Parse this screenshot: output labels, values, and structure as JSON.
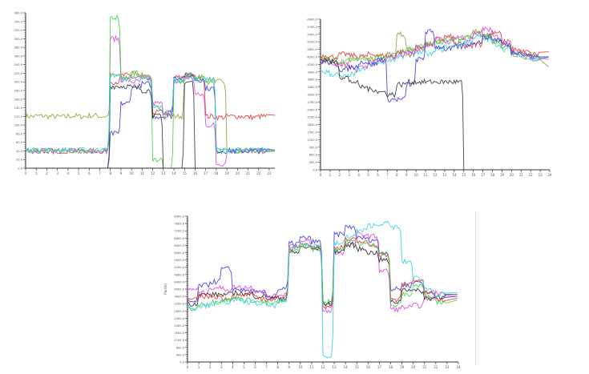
{
  "chart_data": [
    {
      "type": "line",
      "title": "",
      "xlabel": "",
      "ylabel": "",
      "xlim": [
        0,
        23
      ],
      "ylim": [
        0,
        360
      ],
      "ytick_step": 20,
      "grid": false,
      "x": [
        0,
        1,
        2,
        3,
        4,
        5,
        6,
        7,
        8,
        9,
        10,
        11,
        12,
        13,
        14,
        15,
        16,
        17,
        18,
        19,
        20,
        21,
        22,
        23
      ],
      "series": [
        {
          "name": "olive",
          "color": "#9a9a3a",
          "values": [
            120,
            121,
            120,
            119,
            121,
            120,
            122,
            120,
            215,
            210,
            220,
            215,
            140,
            125,
            120,
            215,
            210,
            205,
            200,
            40,
            40,
            40,
            40,
            40
          ]
        },
        {
          "name": "red",
          "color": "#e83030",
          "values": [
            40,
            40,
            40,
            40,
            40,
            40,
            40,
            40,
            200,
            215,
            210,
            205,
            130,
            128,
            210,
            215,
            210,
            120,
            118,
            120,
            120,
            118,
            120,
            122
          ]
        },
        {
          "name": "magenta",
          "color": "#e040e0",
          "values": [
            40,
            40,
            40,
            40,
            40,
            40,
            40,
            40,
            300,
            205,
            200,
            210,
            150,
            130,
            200,
            210,
            170,
            100,
            10,
            40,
            40,
            40,
            40,
            40
          ]
        },
        {
          "name": "green",
          "color": "#40d040",
          "values": [
            40,
            40,
            40,
            40,
            40,
            40,
            40,
            40,
            350,
            210,
            220,
            210,
            20,
            0,
            200,
            215,
            210,
            200,
            40,
            40,
            40,
            40,
            40,
            40
          ]
        },
        {
          "name": "blue",
          "color": "#3838e0",
          "values": [
            0,
            0,
            0,
            0,
            0,
            0,
            0,
            0,
            80,
            150,
            190,
            195,
            120,
            120,
            210,
            215,
            205,
            185,
            40,
            40,
            40,
            40,
            40,
            40
          ]
        },
        {
          "name": "black",
          "color": "#333333",
          "values": [
            0,
            0,
            0,
            0,
            0,
            0,
            0,
            0,
            190,
            190,
            185,
            180,
            120,
            0,
            0,
            200,
            0,
            0,
            0,
            0,
            0,
            0,
            0,
            0
          ]
        },
        {
          "name": "cyan",
          "color": "#30d0e0",
          "values": [
            42,
            42,
            42,
            42,
            42,
            42,
            42,
            42,
            215,
            205,
            210,
            205,
            140,
            130,
            205,
            210,
            205,
            205,
            42,
            42,
            42,
            42,
            42,
            42
          ]
        }
      ]
    },
    {
      "type": "line",
      "title": "",
      "xlabel": "",
      "ylabel": "",
      "xlim": [
        0,
        24
      ],
      "ylim": [
        0,
        6000
      ],
      "ytick_step": 300,
      "grid": false,
      "x": [
        0,
        1,
        2,
        3,
        4,
        5,
        6,
        7,
        8,
        9,
        10,
        11,
        12,
        13,
        14,
        15,
        16,
        17,
        18,
        19,
        20,
        21,
        22,
        23
      ],
      "series": [
        {
          "name": "red",
          "color": "#e83030",
          "values": [
            4550,
            4500,
            4600,
            4550,
            4500,
            4600,
            4550,
            4500,
            4700,
            4600,
            4800,
            5000,
            5200,
            5300,
            5000,
            4900,
            5000,
            5300,
            5500,
            5100,
            4800,
            4700,
            4600,
            4700
          ]
        },
        {
          "name": "olive",
          "color": "#9a9a3a",
          "values": [
            4400,
            4300,
            4200,
            4400,
            4500,
            4400,
            4500,
            4600,
            5400,
            4800,
            4900,
            5000,
            5100,
            5200,
            5100,
            5300,
            5500,
            5400,
            5100,
            4900,
            4600,
            4500,
            4400,
            4100
          ]
        },
        {
          "name": "green",
          "color": "#40d040",
          "values": [
            4400,
            4350,
            4300,
            4400,
            4450,
            4400,
            4500,
            4550,
            4700,
            4800,
            4900,
            5000,
            5100,
            5200,
            5200,
            5300,
            5400,
            5300,
            5100,
            4900,
            4700,
            4600,
            4500,
            4500
          ]
        },
        {
          "name": "cyan",
          "color": "#30d0e0",
          "values": [
            3900,
            3800,
            3700,
            3800,
            4000,
            4200,
            4300,
            4400,
            4500,
            4600,
            4700,
            4600,
            4800,
            4900,
            5000,
            5100,
            5300,
            5200,
            5000,
            4800,
            4600,
            4500,
            4400,
            4500
          ]
        },
        {
          "name": "magenta",
          "color": "#e040e0",
          "values": [
            4300,
            4200,
            4200,
            4000,
            4100,
            4300,
            4300,
            4500,
            4600,
            4700,
            4900,
            5000,
            5200,
            5100,
            5300,
            5200,
            5400,
            5600,
            5300,
            5000,
            4700,
            4600,
            4500,
            4400
          ]
        },
        {
          "name": "blue",
          "color": "#3838e0",
          "values": [
            4300,
            4200,
            4000,
            4100,
            4300,
            4200,
            4400,
            2800,
            2800,
            3400,
            4400,
            5500,
            4900,
            4800,
            4900,
            5000,
            5100,
            5300,
            5200,
            5000,
            4700,
            4600,
            4500,
            4500
          ]
        },
        {
          "name": "black",
          "color": "#333333",
          "values": [
            4400,
            4300,
            3700,
            3500,
            3300,
            3200,
            3100,
            3000,
            3400,
            3500,
            3500,
            3500,
            3500,
            3500,
            3500,
            0,
            0,
            0,
            0,
            0,
            0,
            0,
            0,
            0
          ]
        }
      ]
    },
    {
      "type": "line",
      "title": "",
      "xlabel": "",
      "ylabel": "Pac(k)",
      "xlim": [
        0,
        24
      ],
      "ylim": [
        0,
        8000
      ],
      "ytick_step": 400,
      "grid": false,
      "x": [
        0,
        1,
        2,
        3,
        4,
        5,
        6,
        7,
        8,
        9,
        10,
        11,
        12,
        13,
        14,
        15,
        16,
        17,
        18,
        19,
        20,
        21,
        22,
        23
      ],
      "series": [
        {
          "name": "blue",
          "color": "#3838e0",
          "values": [
            3300,
            4200,
            4400,
            5100,
            4000,
            3900,
            3800,
            3600,
            4000,
            6500,
            6800,
            6600,
            3200,
            7000,
            7400,
            6800,
            6700,
            6000,
            4000,
            4200,
            4400,
            3800,
            3500,
            3600
          ]
        },
        {
          "name": "magenta",
          "color": "#e040e0",
          "values": [
            4000,
            3800,
            4100,
            4000,
            4100,
            4100,
            3900,
            3600,
            3700,
            6400,
            6600,
            6300,
            2800,
            6000,
            6500,
            7000,
            6900,
            5000,
            2900,
            3000,
            3100,
            3500,
            3800,
            3600
          ]
        },
        {
          "name": "black",
          "color": "#222222",
          "values": [
            3200,
            3700,
            3700,
            3700,
            3800,
            3700,
            3600,
            3500,
            3500,
            6000,
            6300,
            6200,
            3200,
            6100,
            6400,
            6200,
            6000,
            5600,
            3300,
            4000,
            3900,
            3500,
            3600,
            3700
          ]
        },
        {
          "name": "red",
          "color": "#e83030",
          "values": [
            3400,
            3600,
            3600,
            3500,
            3600,
            3700,
            3500,
            3400,
            3600,
            6200,
            6500,
            6300,
            3000,
            6300,
            6700,
            6600,
            6400,
            5900,
            3400,
            4300,
            4500,
            3800,
            3400,
            3500
          ]
        },
        {
          "name": "green",
          "color": "#40d040",
          "values": [
            2900,
            3200,
            3300,
            3400,
            3500,
            3400,
            3300,
            3200,
            3300,
            6100,
            6400,
            6200,
            3300,
            6200,
            6600,
            6500,
            6400,
            6000,
            3100,
            3700,
            4200,
            3600,
            3300,
            3400
          ]
        },
        {
          "name": "cyan",
          "color": "#30d0e0",
          "values": [
            3000,
            3100,
            3200,
            3300,
            3400,
            3300,
            3200,
            3100,
            3300,
            6300,
            6500,
            6400,
            300,
            6500,
            6900,
            7200,
            7500,
            7600,
            7400,
            5500,
            4600,
            4000,
            3700,
            3800
          ]
        }
      ]
    }
  ]
}
